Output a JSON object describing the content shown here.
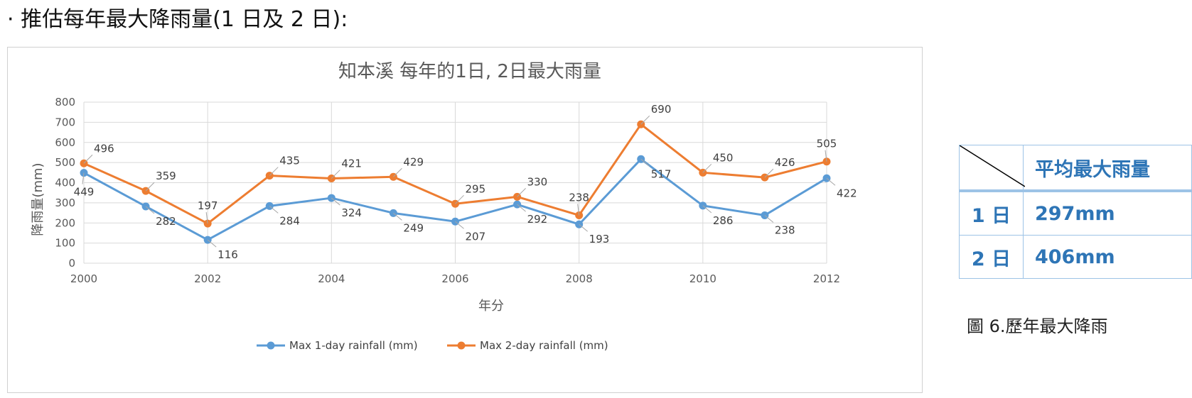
{
  "heading": "· 推估每年最大降雨量(1 日及 2 日):",
  "chart_data": {
    "type": "line",
    "title": "知本溪 每年的1日, 2日最大雨量",
    "xlabel": "年分",
    "ylabel": "降雨量(mm)",
    "ylim": [
      0,
      800
    ],
    "yticks": [
      0,
      100,
      200,
      300,
      400,
      500,
      600,
      700,
      800
    ],
    "xticks": [
      2000,
      2002,
      2004,
      2006,
      2008,
      2010,
      2012
    ],
    "x": [
      2000,
      2001,
      2002,
      2003,
      2004,
      2005,
      2006,
      2007,
      2008,
      2009,
      2010,
      2011,
      2012
    ],
    "grid": true,
    "legend_position": "bottom",
    "series": [
      {
        "name": "Max 1-day rainfall (mm)",
        "color": "#5b9bd5",
        "values": [
          449,
          282,
          116,
          284,
          324,
          249,
          207,
          292,
          193,
          517,
          286,
          238,
          422
        ]
      },
      {
        "name": "Max 2-day rainfall (mm)",
        "color": "#ed7d31",
        "values": [
          496,
          359,
          197,
          435,
          421,
          429,
          295,
          330,
          238,
          690,
          450,
          426,
          505
        ]
      }
    ]
  },
  "table": {
    "header": "平均最大雨量",
    "rows": [
      {
        "label": "1 日",
        "value": "297mm"
      },
      {
        "label": "2 日",
        "value": "406mm"
      }
    ]
  },
  "caption": "圖 6.歷年最大降雨"
}
